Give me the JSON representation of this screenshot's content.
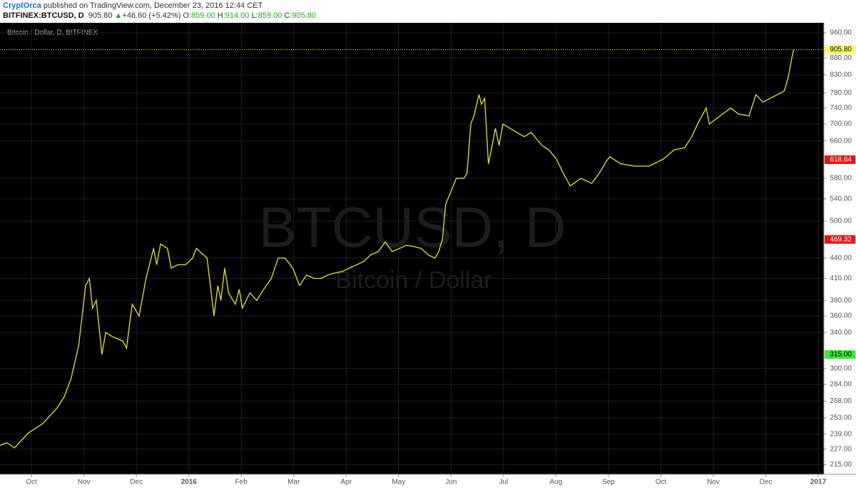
{
  "header": {
    "author": "CryptOrca",
    "published": "published on TradingView.com, December 23, 2016 12:44 CET"
  },
  "symbol_bar": {
    "symbol": "BITFINEX:BTCUSD, D",
    "last": "905.80",
    "arrow": "▲",
    "change": "+46.60 (+5.42%)",
    "ohlc": [
      {
        "label": "O:",
        "value": "859.00"
      },
      {
        "label": "H:",
        "value": "914.00"
      },
      {
        "label": "L:",
        "value": "859.00"
      },
      {
        "label": "C:",
        "value": "905.80"
      }
    ]
  },
  "chart_data": {
    "type": "line",
    "legend": "Bitcoin / Dollar, D, BITFINEX",
    "watermark": "BTCUSD, D",
    "watermark_sub": "Bitcoin / Dollar",
    "log_scale": true,
    "grid": true,
    "xlim": [
      2015.7,
      2017.009
    ],
    "ylim": [
      208,
      994
    ],
    "xticks": [
      {
        "value": 2015.75,
        "label": "Oct"
      },
      {
        "value": 2015.8333,
        "label": "Nov"
      },
      {
        "value": 2015.9167,
        "label": "Dec"
      },
      2016,
      {
        "value": 2016.0833,
        "label": "Feb"
      },
      {
        "value": 2016.1667,
        "label": "Mar"
      },
      {
        "value": 2016.25,
        "label": "Apr"
      },
      {
        "value": 2016.3333,
        "label": "May"
      },
      {
        "value": 2016.4167,
        "label": "Jun"
      },
      {
        "value": 2016.5,
        "label": "Jul"
      },
      {
        "value": 2016.5833,
        "label": "Aug"
      },
      {
        "value": 2016.6667,
        "label": "Sep"
      },
      {
        "value": 2016.75,
        "label": "Oct"
      },
      {
        "value": 2016.8333,
        "label": "Nov"
      },
      {
        "value": 2016.9167,
        "label": "Dec"
      },
      2017
    ],
    "yticks": [
      {
        "value": 960,
        "label": "960.00"
      },
      {
        "value": 880,
        "label": "880.00"
      },
      {
        "value": 830,
        "label": "830.00"
      },
      {
        "value": 780,
        "label": "780.00"
      },
      {
        "value": 740,
        "label": "740.00"
      },
      {
        "value": 700,
        "label": "700.00"
      },
      {
        "value": 660,
        "label": "660.00"
      },
      {
        "value": 580,
        "label": "580.00"
      },
      {
        "value": 540,
        "label": "540.00"
      },
      {
        "value": 500,
        "label": "500.00"
      },
      {
        "value": 440,
        "label": "440.00"
      },
      {
        "value": 410,
        "label": "410.00"
      },
      {
        "value": 380,
        "label": "380.00"
      },
      {
        "value": 360,
        "label": "360.00"
      },
      {
        "value": 340,
        "label": "340.00"
      },
      {
        "value": 300,
        "label": "300.00"
      },
      {
        "value": 284,
        "label": "284.00"
      },
      {
        "value": 268,
        "label": "268.00"
      },
      {
        "value": 253,
        "label": "253.00"
      },
      {
        "value": 239,
        "label": "239.00"
      },
      {
        "value": 227,
        "label": "227.00"
      },
      {
        "value": 215,
        "label": "215.00"
      }
    ],
    "price_labels": [
      {
        "value": 905.8,
        "label": "905.80",
        "color": "#ffff66",
        "text_color": "#000000",
        "dotted_line": true
      },
      {
        "value": 618.64,
        "label": "618.64",
        "color": "#ee1111",
        "text_color": "#ffffff"
      },
      {
        "value": 469.32,
        "label": "469.32",
        "color": "#ee1111",
        "text_color": "#ffffff"
      },
      {
        "value": 315,
        "label": "315.00",
        "color": "#33ee33",
        "text_color": "#000000"
      }
    ],
    "series": [
      {
        "name": "BTCUSD",
        "color": "#d6d62c",
        "x": [
          2015.7,
          2015.711,
          2015.723,
          2015.745,
          2015.768,
          2015.791,
          2015.802,
          2015.813,
          2015.825,
          2015.836,
          2015.842,
          2015.847,
          2015.853,
          2015.862,
          2015.868,
          2015.879,
          2015.895,
          2015.901,
          2015.91,
          2015.921,
          2015.932,
          2015.944,
          2015.949,
          2015.955,
          2015.966,
          2015.972,
          2015.983,
          2015.995,
          2016.006,
          2016.012,
          2016.029,
          2016.04,
          2016.046,
          2016.051,
          2016.057,
          2016.063,
          2016.074,
          2016.08,
          2016.085,
          2016.097,
          2016.108,
          2016.119,
          2016.131,
          2016.142,
          2016.153,
          2016.165,
          2016.176,
          2016.187,
          2016.199,
          2016.21,
          2016.221,
          2016.233,
          2016.244,
          2016.255,
          2016.267,
          2016.278,
          2016.289,
          2016.301,
          2016.312,
          2016.323,
          2016.335,
          2016.346,
          2016.357,
          2016.369,
          2016.38,
          2016.391,
          2016.397,
          2016.403,
          2016.408,
          2016.425,
          2016.437,
          2016.442,
          2016.448,
          2016.453,
          2016.461,
          2016.465,
          2016.47,
          2016.476,
          2016.482,
          2016.487,
          2016.493,
          2016.499,
          2016.51,
          2016.521,
          2016.533,
          2016.544,
          2016.561,
          2016.572,
          2016.584,
          2016.595,
          2016.606,
          2016.623,
          2016.64,
          2016.652,
          2016.663,
          2016.669,
          2016.686,
          2016.708,
          2016.731,
          2016.754,
          2016.771,
          2016.788,
          2016.799,
          2016.81,
          2016.822,
          2016.827,
          2016.844,
          2016.861,
          2016.873,
          2016.89,
          2016.901,
          2016.912,
          2016.935,
          2016.946,
          2016.952,
          2016.958,
          2016.961
        ],
        "values": [
          230,
          232,
          228,
          240,
          248,
          262,
          272,
          290,
          325,
          400,
          410,
          370,
          380,
          315,
          340,
          335,
          330,
          322,
          375,
          360,
          410,
          455,
          430,
          462,
          455,
          425,
          430,
          430,
          440,
          455,
          440,
          360,
          400,
          380,
          425,
          390,
          375,
          395,
          370,
          390,
          380,
          395,
          410,
          440,
          440,
          425,
          400,
          415,
          410,
          410,
          415,
          418,
          420,
          425,
          430,
          435,
          445,
          450,
          465,
          450,
          455,
          460,
          458,
          455,
          445,
          440,
          450,
          470,
          530,
          580,
          580,
          590,
          700,
          720,
          775,
          750,
          765,
          610,
          650,
          690,
          650,
          700,
          690,
          680,
          670,
          680,
          650,
          640,
          620,
          590,
          565,
          580,
          570,
          590,
          615,
          625,
          610,
          605,
          605,
          620,
          640,
          645,
          670,
          705,
          740,
          700,
          720,
          740,
          725,
          720,
          775,
          755,
          775,
          785,
          820,
          880,
          905.8
        ]
      }
    ]
  }
}
